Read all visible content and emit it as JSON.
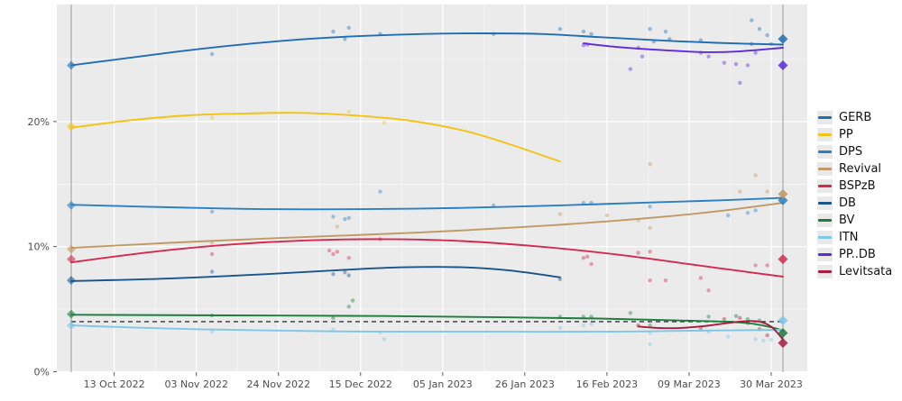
{
  "chart_data": {
    "type": "line",
    "title": "",
    "xlabel": "",
    "ylabel": "",
    "description": "Opinion poll tracker: smoothed trend lines per party, individual poll results as faint points, election results as diamonds on vertical election-day lines, dashed 4% electoral threshold",
    "grid": "on",
    "legend_position": "right",
    "panel_bg": "#ebebeb",
    "grid_color": "#ffffff",
    "threshold_pct": 4,
    "threshold_color": "#333333",
    "election_day_lines": [
      0,
      182
    ],
    "election_line_color": "#9a9a9a",
    "ylim": [
      0,
      29.3
    ],
    "y_ticks": [
      {
        "v": 0,
        "label": "0%"
      },
      {
        "v": 10,
        "label": "10%"
      },
      {
        "v": 20,
        "label": "20%"
      }
    ],
    "x_ticks": [
      {
        "day": 11,
        "label": "13 Oct 2022"
      },
      {
        "day": 32,
        "label": "03 Nov 2022"
      },
      {
        "day": 53,
        "label": "24 Nov 2022"
      },
      {
        "day": 74,
        "label": "15 Dec 2022"
      },
      {
        "day": 95,
        "label": "05 Jan 2023"
      },
      {
        "day": 116,
        "label": "26 Jan 2023"
      },
      {
        "day": 137,
        "label": "16 Feb 2023"
      },
      {
        "day": 158,
        "label": "09 Mar 2023"
      },
      {
        "day": 179,
        "label": "30 Mar 2023"
      }
    ],
    "series": [
      {
        "name": "GERB",
        "color": "#1f6eb4",
        "election_start": 24.5,
        "election_end": 26.6,
        "trend": [
          [
            0,
            24.5
          ],
          [
            15,
            25.1
          ],
          [
            30,
            25.7
          ],
          [
            45,
            26.2
          ],
          [
            60,
            26.6
          ],
          [
            75,
            26.85
          ],
          [
            90,
            27.0
          ],
          [
            105,
            27.05
          ],
          [
            120,
            27.0
          ],
          [
            135,
            26.75
          ],
          [
            150,
            26.5
          ],
          [
            165,
            26.3
          ],
          [
            182,
            26.15
          ]
        ],
        "polls": [
          [
            36,
            25.4
          ],
          [
            67,
            27.2
          ],
          [
            70,
            26.6
          ],
          [
            71,
            27.5
          ],
          [
            79,
            27.0
          ],
          [
            108,
            27.0
          ],
          [
            125,
            27.4
          ],
          [
            131,
            27.2
          ],
          [
            133,
            27.0
          ],
          [
            148,
            27.4
          ],
          [
            149,
            26.4
          ],
          [
            152,
            27.2
          ],
          [
            153,
            26.6
          ],
          [
            161,
            26.5
          ],
          [
            174,
            28.1
          ],
          [
            176,
            27.4
          ],
          [
            178,
            26.9
          ],
          [
            179,
            26.2
          ]
        ]
      },
      {
        "name": "PP",
        "color": "#f2c413",
        "election_start": 19.6,
        "election_end": null,
        "trend": [
          [
            0,
            19.5
          ],
          [
            15,
            20.1
          ],
          [
            30,
            20.5
          ],
          [
            45,
            20.65
          ],
          [
            58,
            20.7
          ],
          [
            72,
            20.5
          ],
          [
            86,
            20.1
          ],
          [
            100,
            19.3
          ],
          [
            112,
            18.2
          ],
          [
            125,
            16.8
          ]
        ],
        "polls": [
          [
            36,
            20.3
          ],
          [
            71,
            20.8
          ],
          [
            80,
            19.9
          ]
        ]
      },
      {
        "name": "DPS",
        "color": "#2b7fc2",
        "election_start": 13.3,
        "election_end": 13.7,
        "trend": [
          [
            0,
            13.35
          ],
          [
            25,
            13.15
          ],
          [
            50,
            13.0
          ],
          [
            75,
            13.0
          ],
          [
            100,
            13.1
          ],
          [
            125,
            13.3
          ],
          [
            150,
            13.55
          ],
          [
            166,
            13.7
          ],
          [
            182,
            13.9
          ]
        ],
        "polls": [
          [
            36,
            12.8
          ],
          [
            67,
            12.4
          ],
          [
            70,
            12.2
          ],
          [
            71,
            12.3
          ],
          [
            79,
            14.4
          ],
          [
            108,
            13.3
          ],
          [
            131,
            13.5
          ],
          [
            133,
            13.5
          ],
          [
            148,
            13.2
          ],
          [
            168,
            12.5
          ],
          [
            173,
            12.7
          ],
          [
            175,
            12.9
          ]
        ]
      },
      {
        "name": "Revival",
        "color": "#bf9a64",
        "election_start": 9.8,
        "election_end": 14.2,
        "trend": [
          [
            0,
            9.9
          ],
          [
            25,
            10.3
          ],
          [
            50,
            10.65
          ],
          [
            75,
            10.95
          ],
          [
            100,
            11.3
          ],
          [
            125,
            11.75
          ],
          [
            150,
            12.35
          ],
          [
            166,
            12.85
          ],
          [
            182,
            13.5
          ]
        ],
        "polls": [
          [
            36,
            10.3
          ],
          [
            68,
            11.6
          ],
          [
            125,
            12.6
          ],
          [
            137,
            12.5
          ],
          [
            145,
            12.1
          ],
          [
            148,
            11.5
          ],
          [
            148,
            16.6
          ],
          [
            171,
            14.4
          ],
          [
            175,
            15.7
          ],
          [
            178,
            14.4
          ]
        ]
      },
      {
        "name": "BSPzB",
        "color": "#d42a50",
        "election_start": 9.0,
        "election_end": 9.0,
        "trend": [
          [
            0,
            8.75
          ],
          [
            20,
            9.55
          ],
          [
            40,
            10.15
          ],
          [
            60,
            10.5
          ],
          [
            80,
            10.6
          ],
          [
            100,
            10.45
          ],
          [
            120,
            10.0
          ],
          [
            140,
            9.35
          ],
          [
            158,
            8.6
          ],
          [
            170,
            8.1
          ],
          [
            182,
            7.6
          ]
        ],
        "polls": [
          [
            36,
            9.4
          ],
          [
            66,
            9.7
          ],
          [
            67,
            9.4
          ],
          [
            68,
            9.6
          ],
          [
            71,
            9.1
          ],
          [
            79,
            10.6
          ],
          [
            131,
            9.1
          ],
          [
            132,
            9.2
          ],
          [
            133,
            8.6
          ],
          [
            145,
            9.5
          ],
          [
            148,
            9.6
          ],
          [
            148,
            7.3
          ],
          [
            152,
            7.3
          ],
          [
            161,
            7.5
          ],
          [
            163,
            6.5
          ],
          [
            175,
            8.5
          ],
          [
            178,
            8.5
          ]
        ]
      },
      {
        "name": "DB",
        "color": "#17558c",
        "election_start": 7.3,
        "election_end": null,
        "trend": [
          [
            0,
            7.25
          ],
          [
            25,
            7.45
          ],
          [
            50,
            7.8
          ],
          [
            70,
            8.15
          ],
          [
            85,
            8.35
          ],
          [
            100,
            8.35
          ],
          [
            112,
            8.1
          ],
          [
            125,
            7.55
          ]
        ],
        "polls": [
          [
            36,
            8.0
          ],
          [
            67,
            7.8
          ],
          [
            70,
            7.95
          ],
          [
            71,
            7.7
          ],
          [
            125,
            7.4
          ]
        ]
      },
      {
        "name": "BV",
        "color": "#1d7d3f",
        "election_start": 4.6,
        "election_end": 3.1,
        "trend": [
          [
            0,
            4.55
          ],
          [
            40,
            4.5
          ],
          [
            80,
            4.45
          ],
          [
            110,
            4.35
          ],
          [
            135,
            4.25
          ],
          [
            155,
            4.1
          ],
          [
            168,
            4.0
          ],
          [
            174,
            3.85
          ],
          [
            179,
            3.55
          ],
          [
            182,
            3.3
          ]
        ],
        "polls": [
          [
            36,
            4.5
          ],
          [
            67,
            4.3
          ],
          [
            71,
            5.2
          ],
          [
            72,
            5.7
          ],
          [
            125,
            4.4
          ],
          [
            131,
            4.4
          ],
          [
            133,
            4.4
          ],
          [
            143,
            4.7
          ],
          [
            148,
            3.7
          ],
          [
            163,
            4.4
          ],
          [
            170,
            4.45
          ],
          [
            173,
            4.2
          ],
          [
            176,
            4.1
          ]
        ]
      },
      {
        "name": "ITN",
        "color": "#7cc7e8",
        "election_start": 3.7,
        "election_end": 4.1,
        "trend": [
          [
            0,
            3.7
          ],
          [
            25,
            3.45
          ],
          [
            50,
            3.3
          ],
          [
            80,
            3.2
          ],
          [
            110,
            3.2
          ],
          [
            140,
            3.2
          ],
          [
            165,
            3.3
          ],
          [
            182,
            3.35
          ]
        ],
        "polls": [
          [
            36,
            3.2
          ],
          [
            67,
            3.4
          ],
          [
            79,
            3.15
          ],
          [
            80,
            2.6
          ],
          [
            125,
            3.5
          ],
          [
            131,
            3.7
          ],
          [
            133,
            3.8
          ],
          [
            148,
            3.1
          ],
          [
            148,
            2.2
          ],
          [
            163,
            3.2
          ],
          [
            168,
            2.8
          ],
          [
            175,
            2.6
          ],
          [
            177,
            2.5
          ],
          [
            179,
            2.55
          ]
        ]
      },
      {
        "name": "PP..DB",
        "color": "#5a2bdc",
        "election_start": null,
        "election_end": 24.5,
        "trend": [
          [
            131,
            26.25
          ],
          [
            140,
            25.95
          ],
          [
            152,
            25.7
          ],
          [
            162,
            25.55
          ],
          [
            170,
            25.6
          ],
          [
            182,
            25.9
          ]
        ],
        "polls": [
          [
            131,
            26.1
          ],
          [
            132,
            26.15
          ],
          [
            143,
            24.2
          ],
          [
            145,
            25.9
          ],
          [
            146,
            25.2
          ],
          [
            161,
            25.5
          ],
          [
            163,
            25.2
          ],
          [
            167,
            24.7
          ],
          [
            170,
            24.6
          ],
          [
            171,
            23.1
          ],
          [
            173,
            24.5
          ],
          [
            174,
            26.2
          ],
          [
            175,
            25.5
          ]
        ]
      },
      {
        "name": "Levitsata",
        "color": "#a81c3e",
        "election_start": null,
        "election_end": 2.3,
        "trend": [
          [
            145,
            3.62
          ],
          [
            150,
            3.5
          ],
          [
            156,
            3.5
          ],
          [
            162,
            3.65
          ],
          [
            168,
            3.9
          ],
          [
            173,
            4.05
          ],
          [
            176,
            4.0
          ],
          [
            179,
            3.6
          ],
          [
            182,
            2.6
          ]
        ],
        "polls": [
          [
            145,
            3.7
          ],
          [
            161,
            3.5
          ],
          [
            167,
            4.2
          ],
          [
            171,
            4.3
          ],
          [
            173,
            3.9
          ],
          [
            176,
            3.4
          ],
          [
            178,
            2.9
          ]
        ]
      }
    ]
  },
  "legend": {
    "items": [
      "GERB",
      "PP",
      "DPS",
      "Revival",
      "BSPzB",
      "DB",
      "BV",
      "ITN",
      "PP..DB",
      "Levitsata"
    ]
  }
}
